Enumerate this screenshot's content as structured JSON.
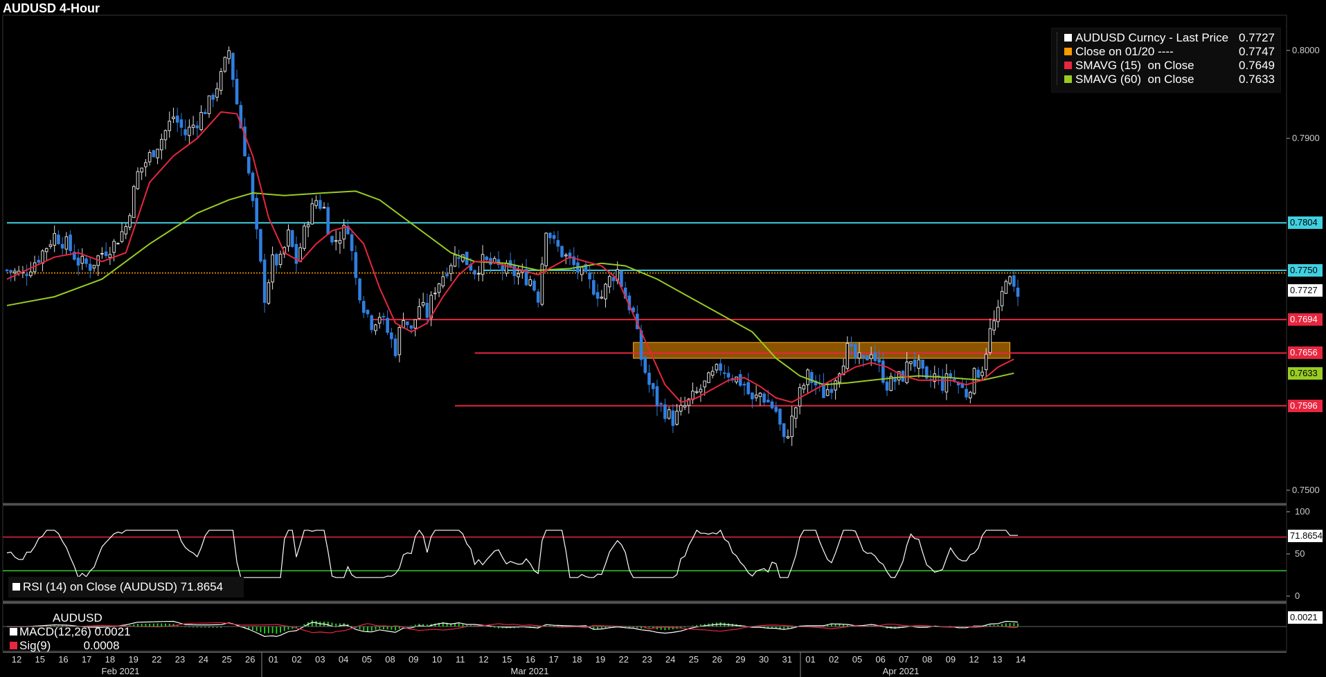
{
  "title": "AUDUSD 4-Hour",
  "legend": [
    {
      "name": "AUDUSD Curncy - Last Price",
      "value": "0.7727",
      "color": "#ffffff"
    },
    {
      "name": "Close on 01/20 ----",
      "value": "0.7747",
      "color": "#ff9900"
    },
    {
      "name": "SMAVG (15)  on Close",
      "value": "0.7649",
      "color": "#e8263f"
    },
    {
      "name": "SMAVG (60)  on Close",
      "value": "0.7633",
      "color": "#99cc22"
    }
  ],
  "price_tags": [
    {
      "text": "0.7804",
      "bg": "#40d0e0",
      "fg": "#000000",
      "value": 0.7804
    },
    {
      "text": "0.7750",
      "bg": "#40d0e0",
      "fg": "#000000",
      "value": 0.775
    },
    {
      "text": "0.7727",
      "bg": "#ffffff",
      "fg": "#000000",
      "value": 0.7727
    },
    {
      "text": "0.7694",
      "bg": "#e8263f",
      "fg": "#ffffff",
      "value": 0.7694
    },
    {
      "text": "0.7656",
      "bg": "#e8263f",
      "fg": "#ffffff",
      "value": 0.7656
    },
    {
      "text": "0.7633",
      "bg": "#99cc22",
      "fg": "#000000",
      "value": 0.7633
    },
    {
      "text": "0.7596",
      "bg": "#e8263f",
      "fg": "#ffffff",
      "value": 0.7596
    }
  ],
  "rsi": {
    "label": "RSI (14)  on Close (AUDUSD) 71.8654",
    "tag": "71.8654",
    "value": 71.8654,
    "axis": [
      "100",
      "50",
      "0"
    ]
  },
  "macd": {
    "title": "AUDUSD",
    "macd_label": "MACD(12,26) 0.0021",
    "sig_label": "Sig(9)          0.0008",
    "tag": "0.0021"
  },
  "chart_data": {
    "type": "candlestick",
    "title": "AUDUSD 4-Hour",
    "y_range": [
      0.7485,
      0.804
    ],
    "y_ticks": [
      "0.8000",
      "0.7900",
      "0.7500"
    ],
    "day_labels": [
      "12",
      "15",
      "16",
      "17",
      "18",
      "19",
      "22",
      "23",
      "24",
      "25",
      "26",
      "01",
      "02",
      "03",
      "04",
      "05",
      "08",
      "09",
      "10",
      "11",
      "12",
      "15",
      "16",
      "17",
      "18",
      "19",
      "22",
      "23",
      "24",
      "25",
      "26",
      "29",
      "30",
      "31",
      "01",
      "02",
      "05",
      "06",
      "07",
      "08",
      "09",
      "12",
      "13",
      "14"
    ],
    "month_labels": [
      "Feb 2021",
      "Mar 2021",
      "Apr 2021"
    ],
    "close_path": [
      [
        0,
        0.775
      ],
      [
        4,
        0.7745
      ],
      [
        8,
        0.7765
      ],
      [
        12,
        0.779
      ],
      [
        15,
        0.778
      ],
      [
        18,
        0.776
      ],
      [
        21,
        0.7755
      ],
      [
        24,
        0.777
      ],
      [
        27,
        0.778
      ],
      [
        30,
        0.78
      ],
      [
        33,
        0.786
      ],
      [
        36,
        0.788
      ],
      [
        39,
        0.79
      ],
      [
        42,
        0.7925
      ],
      [
        45,
        0.7905
      ],
      [
        48,
        0.792
      ],
      [
        51,
        0.794
      ],
      [
        54,
        0.797
      ],
      [
        56,
        0.8
      ],
      [
        58,
        0.794
      ],
      [
        61,
        0.786
      ],
      [
        63,
        0.779
      ],
      [
        65,
        0.772
      ],
      [
        67,
        0.776
      ],
      [
        69,
        0.776
      ],
      [
        71,
        0.779
      ],
      [
        73,
        0.776
      ],
      [
        76,
        0.781
      ],
      [
        78,
        0.783
      ],
      [
        80,
        0.782
      ],
      [
        82,
        0.778
      ],
      [
        84,
        0.779
      ],
      [
        86,
        0.78
      ],
      [
        88,
        0.774
      ],
      [
        90,
        0.771
      ],
      [
        92,
        0.769
      ],
      [
        94,
        0.77
      ],
      [
        96,
        0.768
      ],
      [
        98,
        0.766
      ],
      [
        100,
        0.77
      ],
      [
        102,
        0.768
      ],
      [
        104,
        0.771
      ],
      [
        106,
        0.77
      ],
      [
        108,
        0.773
      ],
      [
        110,
        0.7745
      ],
      [
        112,
        0.776
      ],
      [
        114,
        0.777
      ],
      [
        116,
        0.776
      ],
      [
        118,
        0.775
      ],
      [
        120,
        0.776
      ],
      [
        123,
        0.7755
      ],
      [
        126,
        0.775
      ],
      [
        129,
        0.7745
      ],
      [
        132,
        0.774
      ],
      [
        134,
        0.772
      ],
      [
        136,
        0.78
      ],
      [
        138,
        0.778
      ],
      [
        140,
        0.777
      ],
      [
        142,
        0.776
      ],
      [
        144,
        0.775
      ],
      [
        146,
        0.774
      ],
      [
        148,
        0.773
      ],
      [
        150,
        0.772
      ],
      [
        152,
        0.774
      ],
      [
        154,
        0.775
      ],
      [
        156,
        0.772
      ],
      [
        158,
        0.77
      ],
      [
        160,
        0.765
      ],
      [
        162,
        0.762
      ],
      [
        164,
        0.76
      ],
      [
        166,
        0.759
      ],
      [
        168,
        0.758
      ],
      [
        170,
        0.759
      ],
      [
        172,
        0.76
      ],
      [
        174,
        0.761
      ],
      [
        176,
        0.762
      ],
      [
        178,
        0.763
      ],
      [
        180,
        0.764
      ],
      [
        183,
        0.763
      ],
      [
        186,
        0.762
      ],
      [
        188,
        0.76
      ],
      [
        190,
        0.761
      ],
      [
        192,
        0.76
      ],
      [
        194,
        0.759
      ],
      [
        196,
        0.7555
      ],
      [
        198,
        0.758
      ],
      [
        200,
        0.761
      ],
      [
        202,
        0.763
      ],
      [
        204,
        0.762
      ],
      [
        206,
        0.761
      ],
      [
        208,
        0.762
      ],
      [
        210,
        0.764
      ],
      [
        212,
        0.766
      ],
      [
        214,
        0.765
      ],
      [
        216,
        0.7645
      ],
      [
        218,
        0.766
      ],
      [
        220,
        0.764
      ],
      [
        222,
        0.762
      ],
      [
        224,
        0.7625
      ],
      [
        226,
        0.763
      ],
      [
        228,
        0.765
      ],
      [
        230,
        0.764
      ],
      [
        232,
        0.762
      ],
      [
        234,
        0.763
      ],
      [
        236,
        0.762
      ],
      [
        238,
        0.763
      ],
      [
        240,
        0.762
      ],
      [
        242,
        0.761
      ],
      [
        244,
        0.763
      ],
      [
        246,
        0.764
      ],
      [
        248,
        0.768
      ],
      [
        250,
        0.77
      ],
      [
        252,
        0.7745
      ],
      [
        254,
        0.7727
      ]
    ],
    "sma15_path": [
      [
        0,
        0.774
      ],
      [
        12,
        0.7765
      ],
      [
        18,
        0.777
      ],
      [
        24,
        0.776
      ],
      [
        30,
        0.777
      ],
      [
        36,
        0.785
      ],
      [
        42,
        0.788
      ],
      [
        48,
        0.79
      ],
      [
        54,
        0.793
      ],
      [
        58,
        0.7928
      ],
      [
        62,
        0.788
      ],
      [
        66,
        0.781
      ],
      [
        70,
        0.777
      ],
      [
        74,
        0.776
      ],
      [
        78,
        0.778
      ],
      [
        82,
        0.7795
      ],
      [
        86,
        0.78
      ],
      [
        90,
        0.778
      ],
      [
        94,
        0.773
      ],
      [
        98,
        0.769
      ],
      [
        102,
        0.768
      ],
      [
        106,
        0.769
      ],
      [
        110,
        0.772
      ],
      [
        114,
        0.7745
      ],
      [
        118,
        0.776
      ],
      [
        122,
        0.776
      ],
      [
        126,
        0.7755
      ],
      [
        130,
        0.775
      ],
      [
        134,
        0.7745
      ],
      [
        138,
        0.7755
      ],
      [
        142,
        0.7765
      ],
      [
        146,
        0.776
      ],
      [
        150,
        0.7755
      ],
      [
        154,
        0.774
      ],
      [
        158,
        0.77
      ],
      [
        162,
        0.766
      ],
      [
        166,
        0.762
      ],
      [
        170,
        0.76
      ],
      [
        174,
        0.7605
      ],
      [
        178,
        0.7615
      ],
      [
        182,
        0.7625
      ],
      [
        186,
        0.7628
      ],
      [
        190,
        0.7618
      ],
      [
        194,
        0.7605
      ],
      [
        198,
        0.76
      ],
      [
        202,
        0.761
      ],
      [
        206,
        0.762
      ],
      [
        210,
        0.763
      ],
      [
        214,
        0.764
      ],
      [
        218,
        0.7645
      ],
      [
        222,
        0.764
      ],
      [
        226,
        0.763
      ],
      [
        230,
        0.7625
      ],
      [
        234,
        0.7625
      ],
      [
        238,
        0.7625
      ],
      [
        242,
        0.762
      ],
      [
        246,
        0.7625
      ],
      [
        250,
        0.764
      ],
      [
        254,
        0.7649
      ]
    ],
    "sma60_path": [
      [
        0,
        0.771
      ],
      [
        12,
        0.772
      ],
      [
        24,
        0.774
      ],
      [
        36,
        0.778
      ],
      [
        48,
        0.7815
      ],
      [
        56,
        0.783
      ],
      [
        62,
        0.7838
      ],
      [
        70,
        0.7835
      ],
      [
        80,
        0.7838
      ],
      [
        88,
        0.784
      ],
      [
        94,
        0.783
      ],
      [
        100,
        0.781
      ],
      [
        106,
        0.779
      ],
      [
        112,
        0.777
      ],
      [
        118,
        0.776
      ],
      [
        126,
        0.7758
      ],
      [
        134,
        0.775
      ],
      [
        142,
        0.7752
      ],
      [
        150,
        0.7758
      ],
      [
        156,
        0.7755
      ],
      [
        164,
        0.774
      ],
      [
        172,
        0.772
      ],
      [
        180,
        0.77
      ],
      [
        188,
        0.768
      ],
      [
        194,
        0.765
      ],
      [
        200,
        0.763
      ],
      [
        206,
        0.762
      ],
      [
        212,
        0.7622
      ],
      [
        218,
        0.7625
      ],
      [
        224,
        0.7628
      ],
      [
        230,
        0.763
      ],
      [
        238,
        0.7628
      ],
      [
        246,
        0.7625
      ],
      [
        254,
        0.7633
      ]
    ],
    "candles_count": 256,
    "horizontal_levels": [
      {
        "value": 0.7804,
        "color": "#40d0e0",
        "x_start": 0
      },
      {
        "value": 0.775,
        "color": "#40d0e0",
        "x_start": 120
      },
      {
        "value": 0.7747,
        "color": "#ff9900",
        "dotted": true,
        "x_start": 0
      },
      {
        "value": 0.7694,
        "color": "#e8263f",
        "x_start": 92
      },
      {
        "value": 0.7656,
        "color": "#e8263f",
        "x_start": 118
      },
      {
        "value": 0.7596,
        "color": "#e8263f",
        "x_start": 113
      }
    ],
    "zone": {
      "y_from": 0.765,
      "y_to": 0.7668,
      "x_from": 158,
      "x_to": 253,
      "color": "#ff9900"
    },
    "rsi_levels": [
      70,
      30
    ]
  }
}
